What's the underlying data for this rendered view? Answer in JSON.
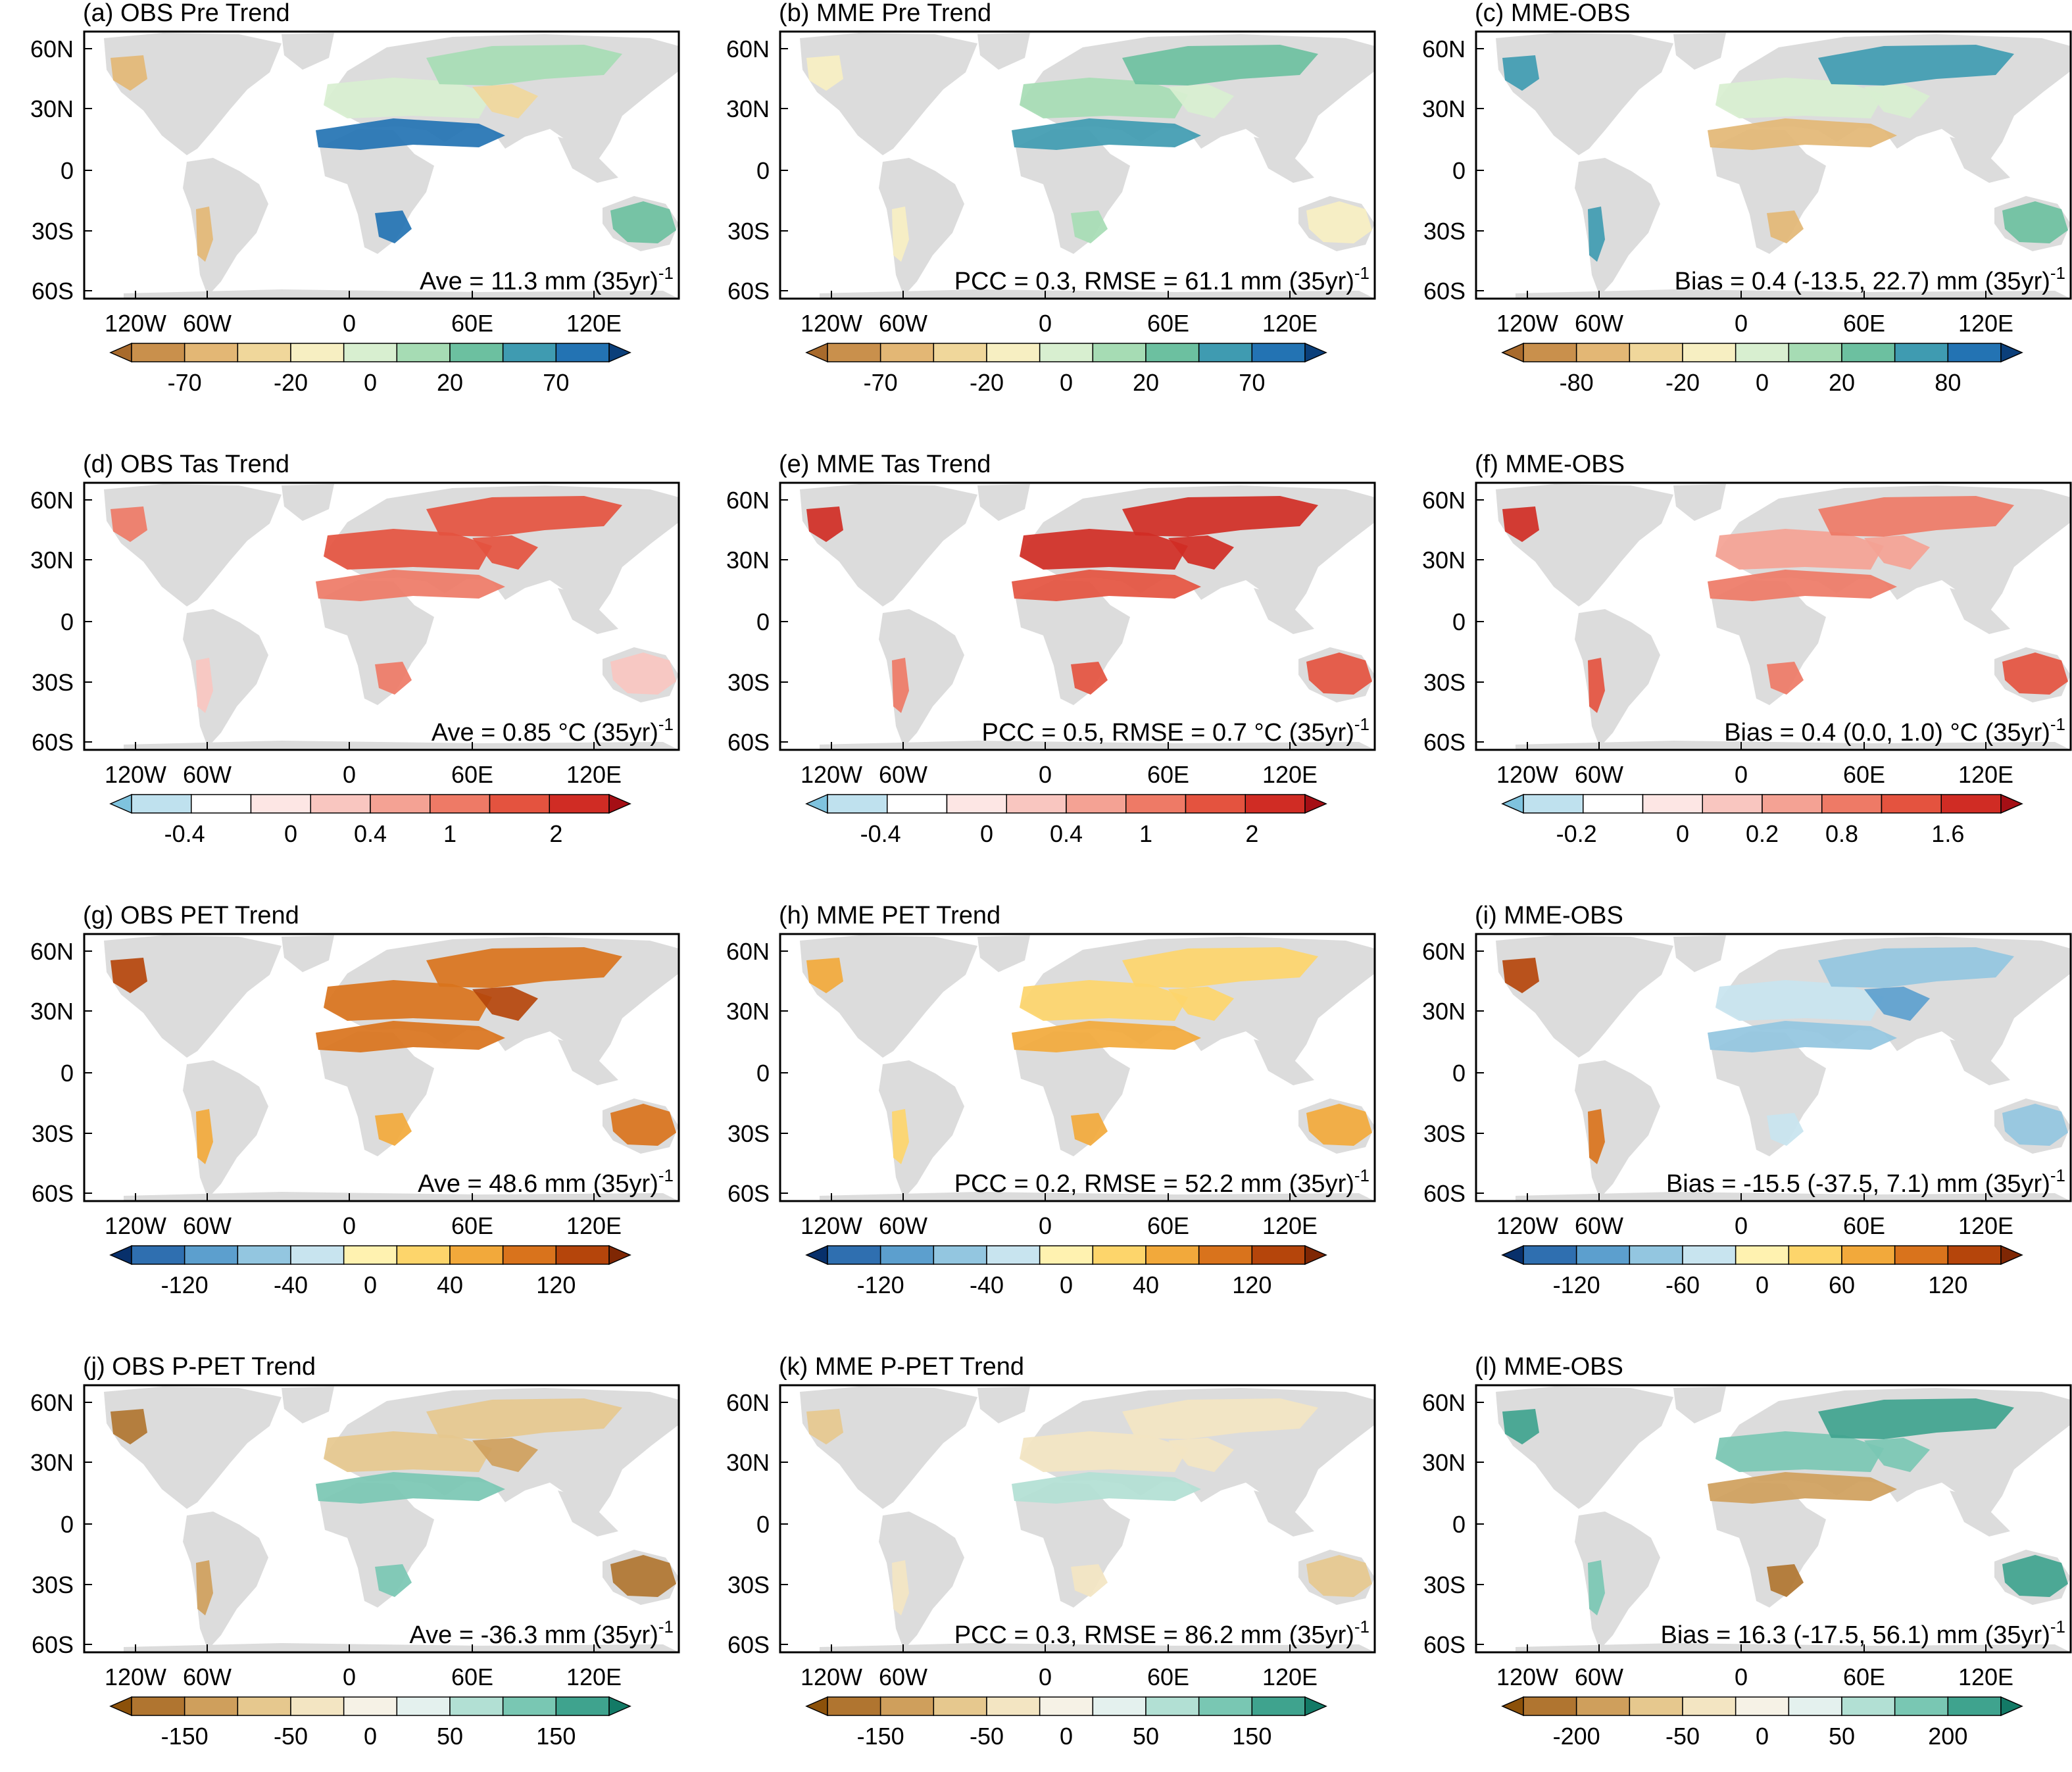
{
  "panels": [
    {
      "title": "(a) OBS Pre Trend",
      "stat": {
        "main": "Ave = 11.3 mm (35yr)",
        "sup": "-1"
      },
      "colorbar": {
        "labels": [
          "-70",
          "-20",
          "0",
          "20",
          "70"
        ],
        "colors": [
          "#a86a2c",
          "#c9904c",
          "#e3b775",
          "#f0d79b",
          "#f7efc2",
          "#d8efd0",
          "#a6dcb4",
          "#6cc0a0",
          "#3f9bb1",
          "#2373b3",
          "#0b3f7a"
        ]
      }
    },
    {
      "title": "(b) MME Pre Trend",
      "stat": {
        "main": "PCC = 0.3, RMSE = 61.1 mm (35yr)",
        "sup": "-1"
      },
      "colorbar": {
        "labels": [
          "-70",
          "-20",
          "0",
          "20",
          "70"
        ],
        "colors": [
          "#a86a2c",
          "#c9904c",
          "#e3b775",
          "#f0d79b",
          "#f7efc2",
          "#d8efd0",
          "#a6dcb4",
          "#6cc0a0",
          "#3f9bb1",
          "#2373b3",
          "#0b3f7a"
        ]
      }
    },
    {
      "title": "(c) MME-OBS",
      "stat": {
        "main": "Bias = 0.4 (-13.5, 22.7) mm (35yr)",
        "sup": "-1"
      },
      "colorbar": {
        "labels": [
          "-80",
          "-20",
          "0",
          "20",
          "80"
        ],
        "colors": [
          "#a86a2c",
          "#c9904c",
          "#e3b775",
          "#f0d79b",
          "#f7efc2",
          "#d8efd0",
          "#a6dcb4",
          "#6cc0a0",
          "#3f9bb1",
          "#2373b3",
          "#0b3f7a"
        ]
      }
    },
    {
      "title": "(d) OBS Tas Trend",
      "stat": {
        "main": "Ave = 0.85 °C (35yr)",
        "sup": "-1"
      },
      "colorbar": {
        "labels": [
          "-0.4",
          "0",
          "0.4",
          "1",
          "2"
        ],
        "colors": [
          "#7fc3de",
          "#bfe1ee",
          "#ffffff",
          "#fde6e4",
          "#f9c6c0",
          "#f4a294",
          "#ee7a66",
          "#e4533f",
          "#d02c24",
          "#a50f15"
        ]
      }
    },
    {
      "title": "(e) MME Tas Trend",
      "stat": {
        "main": "PCC = 0.5, RMSE = 0.7 °C (35yr)",
        "sup": "-1"
      },
      "colorbar": {
        "labels": [
          "-0.4",
          "0",
          "0.4",
          "1",
          "2"
        ],
        "colors": [
          "#7fc3de",
          "#bfe1ee",
          "#ffffff",
          "#fde6e4",
          "#f9c6c0",
          "#f4a294",
          "#ee7a66",
          "#e4533f",
          "#d02c24",
          "#a50f15"
        ]
      }
    },
    {
      "title": "(f) MME-OBS",
      "stat": {
        "main": "Bias = 0.4 (0.0, 1.0) °C (35yr)",
        "sup": "-1"
      },
      "colorbar": {
        "labels": [
          "-0.2",
          "0",
          "0.2",
          "0.8",
          "1.6"
        ],
        "colors": [
          "#7fc3de",
          "#bfe1ee",
          "#ffffff",
          "#fde6e4",
          "#f9c6c0",
          "#f4a294",
          "#ee7a66",
          "#e4533f",
          "#d02c24",
          "#a50f15"
        ]
      }
    },
    {
      "title": "(g) OBS PET Trend",
      "stat": {
        "main": "Ave = 48.6 mm (35yr)",
        "sup": "-1"
      },
      "colorbar": {
        "labels": [
          "-120",
          "-40",
          "0",
          "40",
          "120"
        ],
        "colors": [
          "#08306b",
          "#2f6fb0",
          "#5c9fce",
          "#93c6e0",
          "#c8e4ef",
          "#fff2b0",
          "#fdd56b",
          "#f2a93b",
          "#d9731c",
          "#b5450b",
          "#7f2704"
        ]
      }
    },
    {
      "title": "(h) MME PET Trend",
      "stat": {
        "main": "PCC = 0.2, RMSE = 52.2 mm (35yr)",
        "sup": "-1"
      },
      "colorbar": {
        "labels": [
          "-120",
          "-40",
          "0",
          "40",
          "120"
        ],
        "colors": [
          "#08306b",
          "#2f6fb0",
          "#5c9fce",
          "#93c6e0",
          "#c8e4ef",
          "#fff2b0",
          "#fdd56b",
          "#f2a93b",
          "#d9731c",
          "#b5450b",
          "#7f2704"
        ]
      }
    },
    {
      "title": "(i) MME-OBS",
      "stat": {
        "main": "Bias = -15.5 (-37.5, 7.1) mm (35yr)",
        "sup": "-1"
      },
      "colorbar": {
        "labels": [
          "-120",
          "-60",
          "0",
          "60",
          "120"
        ],
        "colors": [
          "#08306b",
          "#2f6fb0",
          "#5c9fce",
          "#93c6e0",
          "#c8e4ef",
          "#fff2b0",
          "#fdd56b",
          "#f2a93b",
          "#d9731c",
          "#b5450b",
          "#7f2704"
        ]
      }
    },
    {
      "title": "(j) OBS P-PET Trend",
      "stat": {
        "main": "Ave = -36.3 mm (35yr)",
        "sup": "-1"
      },
      "colorbar": {
        "labels": [
          "-150",
          "-50",
          "0",
          "50",
          "150"
        ],
        "colors": [
          "#8c510a",
          "#b07530",
          "#cf9f5c",
          "#e6c88e",
          "#f3e5c2",
          "#f6f2e6",
          "#e4f1ee",
          "#b2e0d4",
          "#79c7b3",
          "#3fa38e",
          "#137a66"
        ]
      }
    },
    {
      "title": "(k) MME P-PET Trend",
      "stat": {
        "main": "PCC = 0.3, RMSE = 86.2 mm (35yr)",
        "sup": "-1"
      },
      "colorbar": {
        "labels": [
          "-150",
          "-50",
          "0",
          "50",
          "150"
        ],
        "colors": [
          "#8c510a",
          "#b07530",
          "#cf9f5c",
          "#e6c88e",
          "#f3e5c2",
          "#f6f2e6",
          "#e4f1ee",
          "#b2e0d4",
          "#79c7b3",
          "#3fa38e",
          "#137a66"
        ]
      }
    },
    {
      "title": "(l) MME-OBS",
      "stat": {
        "main": "Bias = 16.3 (-17.5, 56.1) mm (35yr)",
        "sup": "-1"
      },
      "colorbar": {
        "labels": [
          "-200",
          "-50",
          "0",
          "50",
          "200"
        ],
        "colors": [
          "#8c510a",
          "#b07530",
          "#cf9f5c",
          "#e6c88e",
          "#f3e5c2",
          "#f6f2e6",
          "#e4f1ee",
          "#b2e0d4",
          "#79c7b3",
          "#3fa38e",
          "#137a66"
        ]
      }
    }
  ],
  "axes": {
    "lat_labels": [
      "60N",
      "30N",
      "0",
      "30S",
      "60S"
    ],
    "lon_labels": [
      "120W",
      "60W",
      "0",
      "60E",
      "120E"
    ]
  },
  "map_colors": {
    "land": "#dcdcdc",
    "ocean": "#ffffff"
  }
}
